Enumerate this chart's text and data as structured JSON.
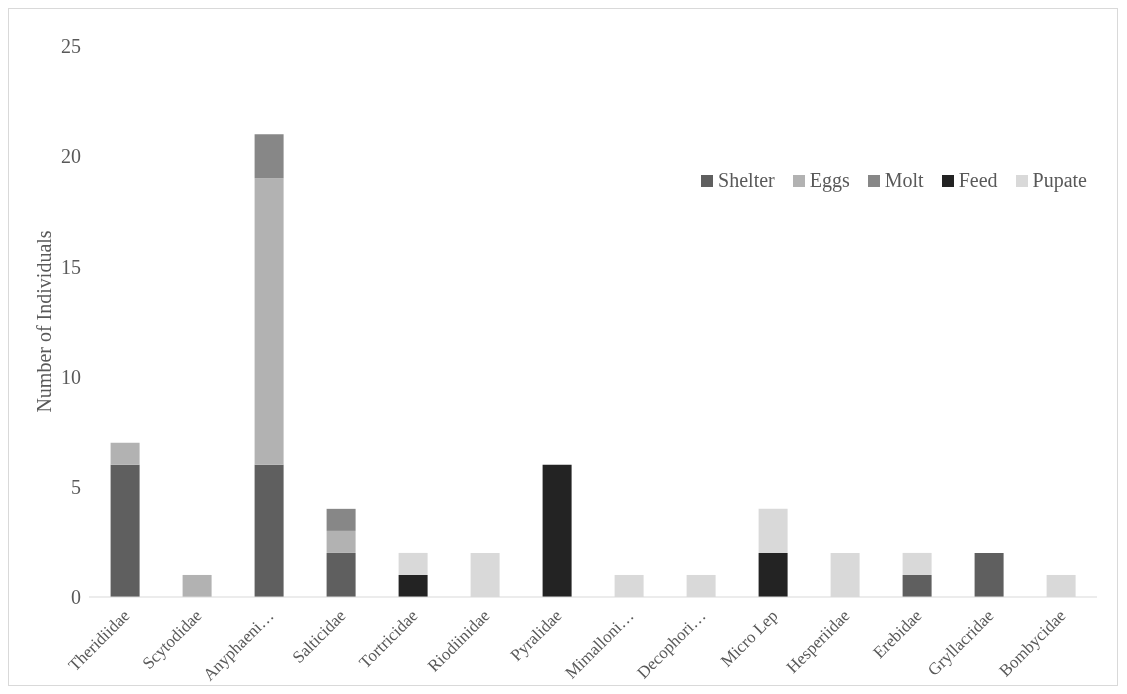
{
  "chart_data": {
    "type": "bar",
    "stacked": true,
    "ylabel": "Number of Individuals",
    "categories": [
      "Theridiidae",
      "Scytodidae",
      "Anyphaeni…",
      "Salticidae",
      "Tortricidae",
      "Riodiinidae",
      "Pyralidae",
      "Mimalloni…",
      "Decophori…",
      "Micro Lep",
      "Hesperiidae",
      "Erebidae",
      "Gryllacridae",
      "Bombycidae"
    ],
    "series": [
      {
        "name": "Shelter",
        "color": "#5f5f5f",
        "values": [
          6,
          0,
          6,
          2,
          0,
          0,
          0,
          0,
          0,
          0,
          0,
          1,
          2,
          0
        ]
      },
      {
        "name": "Eggs",
        "color": "#b2b2b2",
        "values": [
          1,
          1,
          13,
          1,
          0,
          0,
          0,
          0,
          0,
          0,
          0,
          0,
          0,
          0
        ]
      },
      {
        "name": "Molt",
        "color": "#878787",
        "values": [
          0,
          0,
          2,
          1,
          0,
          0,
          0,
          0,
          0,
          0,
          0,
          0,
          0,
          0
        ]
      },
      {
        "name": "Feed",
        "color": "#232323",
        "values": [
          0,
          0,
          0,
          0,
          1,
          0,
          6,
          0,
          0,
          2,
          0,
          0,
          0,
          0
        ]
      },
      {
        "name": "Pupate",
        "color": "#d9d9d9",
        "values": [
          0,
          0,
          0,
          0,
          1,
          2,
          0,
          1,
          1,
          2,
          2,
          1,
          0,
          1
        ]
      }
    ],
    "ylim": [
      0,
      25
    ],
    "yticks": [
      0,
      5,
      10,
      15,
      20,
      25
    ],
    "grid": false,
    "legend": "top right"
  }
}
